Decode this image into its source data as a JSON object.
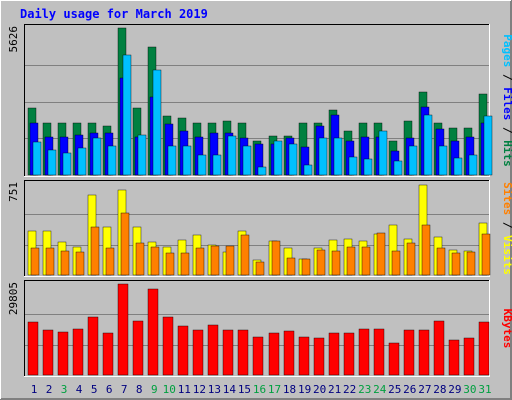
{
  "chart_data": {
    "type": "bar",
    "title": "Daily usage for March 2019",
    "days": [
      "1",
      "2",
      "3",
      "4",
      "5",
      "6",
      "7",
      "8",
      "9",
      "10",
      "11",
      "12",
      "13",
      "14",
      "15",
      "16",
      "17",
      "18",
      "19",
      "20",
      "21",
      "22",
      "23",
      "24",
      "25",
      "26",
      "27",
      "28",
      "29",
      "30",
      "31"
    ],
    "weekend_days": [
      "3",
      "9",
      "10",
      "16",
      "17",
      "23",
      "24",
      "30",
      "31"
    ],
    "panels": [
      {
        "id": "pages-files-hits",
        "max_label": "5626",
        "ymax": 5626,
        "series": [
          {
            "name": "Hits",
            "color": "#008040",
            "values": [
              2560,
              2000,
              2000,
              2000,
              2000,
              1870,
              5626,
              2560,
              4900,
              2270,
              2170,
              2000,
              2000,
              2060,
              2000,
              1300,
              1500,
              1500,
              2000,
              2000,
              2470,
              1700,
              2000,
              2000,
              1300,
              2060,
              3160,
              2000,
              1800,
              1800,
              3100
            ]
          },
          {
            "name": "Files",
            "color": "#0000ff",
            "values": [
              2000,
              1440,
              1440,
              1540,
              1600,
              1600,
              3700,
              1440,
              3000,
              1970,
              1700,
              1470,
              1600,
              1600,
              1400,
              1200,
              1200,
              1400,
              1070,
              1870,
              2300,
              1300,
              1470,
              1440,
              900,
              1400,
              2600,
              1770,
              1300,
              1440,
              2000
            ]
          },
          {
            "name": "Pages",
            "color": "#00c0ff",
            "values": [
              1270,
              950,
              860,
              1040,
              1430,
              1120,
              4600,
              1520,
              4010,
              1120,
              1120,
              750,
              750,
              1500,
              1120,
              300,
              1300,
              1200,
              400,
              1430,
              1400,
              700,
              600,
              1680,
              520,
              1120,
              2300,
              1120,
              650,
              750,
              2250
            ]
          }
        ]
      },
      {
        "id": "visits-sites",
        "max_label": "751",
        "ymax": 751,
        "series": [
          {
            "name": "Visits",
            "color": "#ffff00",
            "values": [
              360,
              360,
              270,
              230,
              660,
              400,
              700,
              400,
              270,
              230,
              290,
              330,
              250,
              190,
              360,
              120,
              280,
              220,
              130,
              220,
              290,
              300,
              280,
              340,
              410,
              300,
              740,
              310,
              210,
              200,
              430
            ]
          },
          {
            "name": "Sites",
            "color": "#ff8000",
            "values": [
              220,
              220,
              200,
              190,
              400,
              220,
              510,
              260,
              230,
              180,
              180,
              220,
              240,
              240,
              330,
              110,
              280,
              140,
              130,
              210,
              200,
              230,
              230,
              350,
              200,
              260,
              410,
              220,
              180,
              190,
              340
            ]
          }
        ]
      },
      {
        "id": "kbytes",
        "max_label": "29805",
        "ymax": 29805,
        "series": [
          {
            "name": "KBytes",
            "color": "#ff0000",
            "values": [
              17400,
              14700,
              14200,
              15100,
              19000,
              13600,
              29805,
              17700,
              28200,
              19000,
              16100,
              14700,
              16500,
              14700,
              14700,
              12600,
              13600,
              14400,
              12400,
              12100,
              13800,
              13600,
              15000,
              15000,
              10500,
              14700,
              14700,
              17700,
              11500,
              12000,
              17400
            ]
          }
        ]
      }
    ],
    "right_labels": [
      {
        "panel": "pages-files-hits",
        "parts": [
          {
            "text": "Pages",
            "color": "#00c0ff"
          },
          {
            "text": " / ",
            "color": "#000000"
          },
          {
            "text": "Files",
            "color": "#0000ff"
          },
          {
            "text": " / ",
            "color": "#000000"
          },
          {
            "text": "Hits",
            "color": "#008040"
          }
        ]
      },
      {
        "panel": "visits-sites",
        "parts": [
          {
            "text": "Sites",
            "color": "#ff8000"
          },
          {
            "text": " / ",
            "color": "#000000"
          },
          {
            "text": "Visits",
            "color": "#ffff00"
          }
        ]
      },
      {
        "panel": "kbytes",
        "parts": [
          {
            "text": "KBytes",
            "color": "#ff0000"
          }
        ]
      }
    ],
    "colors": {
      "background": "#c0c0c0",
      "title": "#0000ff",
      "weekday_label": "#000080",
      "weekend_label": "#00a040",
      "gridline": "#808080"
    },
    "grid": true
  }
}
